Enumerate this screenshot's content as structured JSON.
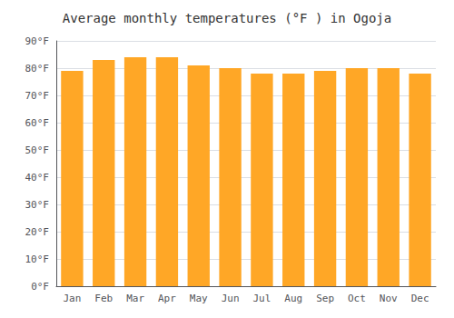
{
  "chart_data": {
    "type": "bar",
    "title": "Average monthly temperatures (°F ) in Ogoja",
    "categories": [
      "Jan",
      "Feb",
      "Mar",
      "Apr",
      "May",
      "Jun",
      "Jul",
      "Aug",
      "Sep",
      "Oct",
      "Nov",
      "Dec"
    ],
    "values": [
      79,
      83,
      84,
      84,
      81,
      80,
      78,
      78,
      79,
      80,
      80,
      78
    ],
    "color": "#FFA726",
    "ylim": [
      0,
      90
    ],
    "yticks": [
      {
        "value": 0,
        "label": "0°F"
      },
      {
        "value": 10,
        "label": "10°F"
      },
      {
        "value": 20,
        "label": "20°F"
      },
      {
        "value": 30,
        "label": "30°F"
      },
      {
        "value": 40,
        "label": "40°F"
      },
      {
        "value": 50,
        "label": "50°F"
      },
      {
        "value": 60,
        "label": "60°F"
      },
      {
        "value": 70,
        "label": "70°F"
      },
      {
        "value": 80,
        "label": "80°F"
      },
      {
        "value": 90,
        "label": "90°F"
      }
    ],
    "grid": true
  }
}
